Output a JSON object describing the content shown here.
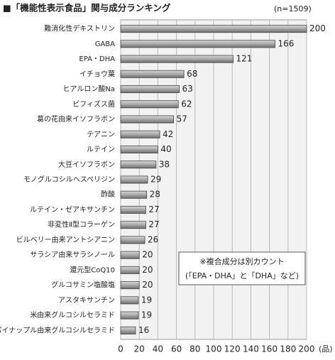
{
  "chart_data": {
    "type": "barh",
    "title": "■「機能性表示食品」関与成分ランキング",
    "subtitle": "(n=1509)",
    "xlabel": "(品)",
    "annotation": [
      "※複合成分は別カウント",
      "(「EPA・DHA」と「DHA」など)"
    ],
    "categories": [
      "難消化性デキストリン",
      "GABA",
      "EPA・DHA",
      "イチョウ葉",
      "ヒアルロン酸Na",
      "ビフィズス菌",
      "葛の花由来イソフラボン",
      "テアニン",
      "ルテイン",
      "大豆イソフラボン",
      "モノグルコシルヘスペリジン",
      "酢酸",
      "ルテイン・ゼアキサンチン",
      "非変性Ⅱ型コラーゲン",
      "ビルベリー由来アントシアニン",
      "サラシア由来サラシノール",
      "還元型CoQ10",
      "グルコサミン塩酸塩",
      "アスタキサンチン",
      "米由来グルコシルセラミド",
      "パイナップル由来グルコシルセラミド"
    ],
    "values": [
      200,
      166,
      121,
      68,
      63,
      62,
      57,
      42,
      40,
      38,
      29,
      28,
      27,
      27,
      26,
      20,
      20,
      20,
      19,
      19,
      16
    ],
    "color": "#9a9a9a",
    "xlim": [
      0,
      200
    ],
    "xticks": [
      0,
      20,
      40,
      60,
      80,
      100,
      120,
      140,
      160,
      180,
      200
    ],
    "grid": true
  }
}
